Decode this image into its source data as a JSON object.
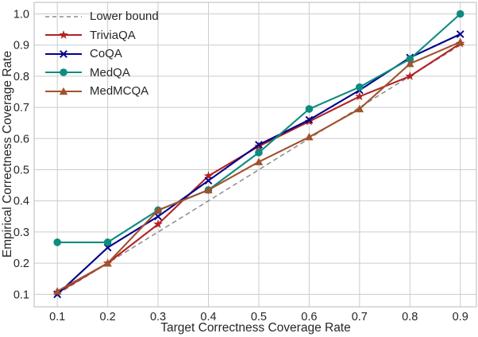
{
  "chart_data": {
    "type": "line",
    "title": "",
    "xlabel": "Target Correctness Coverage Rate",
    "ylabel": "Empirical Correctness Coverage Rate",
    "x": [
      0.1,
      0.2,
      0.3,
      0.4,
      0.5,
      0.6,
      0.7,
      0.8,
      0.9
    ],
    "x_tick_labels": [
      "0.1",
      "0.2",
      "0.3",
      "0.4",
      "0.5",
      "0.6",
      "0.7",
      "0.8",
      "0.9"
    ],
    "y_ticks": [
      0.1,
      0.2,
      0.3,
      0.4,
      0.5,
      0.6,
      0.7,
      0.8,
      0.9,
      1.0
    ],
    "y_tick_labels": [
      "0.1",
      "0.2",
      "0.3",
      "0.4",
      "0.5",
      "0.6",
      "0.7",
      "0.8",
      "0.9",
      "1.0"
    ],
    "xlim": [
      0.054,
      0.932
    ],
    "ylim": [
      0.06,
      1.037
    ],
    "grid": true,
    "grid_color": "#cccccc",
    "spine_color": "#c4c4c4",
    "text_color": "#262626",
    "legend_position": "upper-left",
    "series": [
      {
        "name": "Lower bound",
        "line_style": "dashed",
        "marker": "none",
        "color": "#8c8c8c",
        "values": [
          0.1,
          0.2,
          0.3,
          0.4,
          0.5,
          0.6,
          0.7,
          0.8,
          0.9
        ]
      },
      {
        "name": "TriviaQA",
        "line_style": "solid",
        "marker": "star",
        "color": "#b22222",
        "values": [
          0.105,
          0.2,
          0.325,
          0.48,
          0.575,
          0.655,
          0.735,
          0.8,
          0.905
        ]
      },
      {
        "name": "CoQA",
        "line_style": "solid",
        "marker": "x",
        "color": "#00008b",
        "values": [
          0.1,
          0.25,
          0.35,
          0.465,
          0.58,
          0.66,
          0.755,
          0.86,
          0.935
        ]
      },
      {
        "name": "MedQA",
        "line_style": "solid",
        "marker": "circle",
        "color": "#0d8c80",
        "values": [
          0.267,
          0.267,
          0.37,
          0.435,
          0.555,
          0.695,
          0.765,
          0.855,
          1.0
        ]
      },
      {
        "name": "MedMCQA",
        "line_style": "solid",
        "marker": "triangle",
        "color": "#a0522d",
        "values": [
          0.11,
          0.2,
          0.37,
          0.435,
          0.525,
          0.605,
          0.695,
          0.84,
          0.91
        ]
      }
    ]
  }
}
